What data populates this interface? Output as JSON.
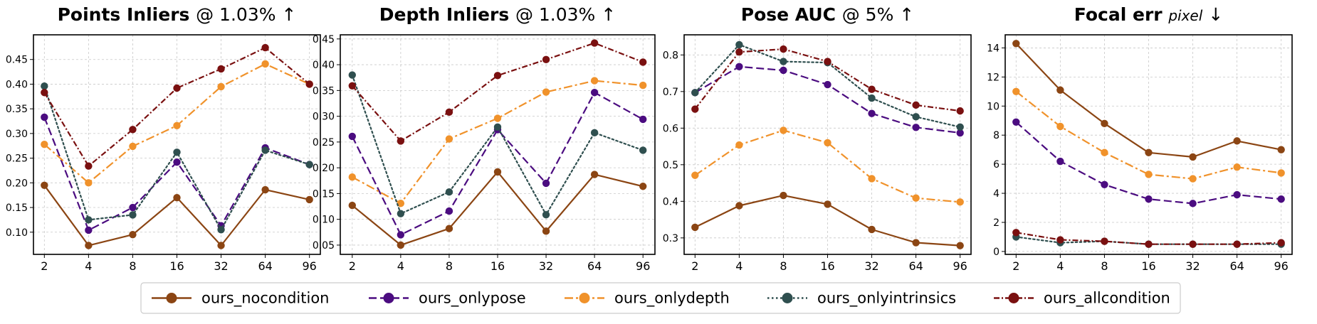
{
  "chart_data": [
    {
      "type": "line",
      "title": "Points Inliers",
      "title_suffix": "@ 1.03%",
      "arrow": "↑",
      "xlabel": "",
      "ylabel": "",
      "x_ticks": [
        "2",
        "4",
        "8",
        "16",
        "32",
        "64",
        "96"
      ],
      "ylim": [
        0.055,
        0.5
      ],
      "y_ticks": [
        0.1,
        0.15,
        0.2,
        0.25,
        0.3,
        0.35,
        0.4,
        0.45
      ],
      "y_decimals": 2,
      "series": [
        {
          "name": "ours_nocondition",
          "values": [
            0.195,
            0.073,
            0.095,
            0.17,
            0.073,
            0.186,
            0.166
          ]
        },
        {
          "name": "ours_onlypose",
          "values": [
            0.333,
            0.104,
            0.15,
            0.242,
            0.113,
            0.271,
            0.237
          ]
        },
        {
          "name": "ours_onlydepth",
          "values": [
            0.278,
            0.2,
            0.274,
            0.316,
            0.395,
            0.441,
            0.4
          ]
        },
        {
          "name": "ours_onlyintrinsics",
          "values": [
            0.396,
            0.125,
            0.135,
            0.262,
            0.105,
            0.266,
            0.237
          ]
        },
        {
          "name": "ours_allcondition",
          "values": [
            0.383,
            0.234,
            0.308,
            0.392,
            0.431,
            0.474,
            0.4
          ]
        }
      ]
    },
    {
      "type": "line",
      "title": "Depth Inliers",
      "title_suffix": "@ 1.03%",
      "arrow": "↑",
      "xlabel": "",
      "ylabel": "",
      "x_ticks": [
        "2",
        "4",
        "8",
        "16",
        "32",
        "64",
        "96"
      ],
      "ylim": [
        0.032,
        0.458
      ],
      "y_ticks": [
        0.05,
        0.1,
        0.15,
        0.2,
        0.25,
        0.3,
        0.35,
        0.4,
        0.45
      ],
      "y_decimals": 2,
      "series": [
        {
          "name": "ours_nocondition",
          "values": [
            0.127,
            0.05,
            0.082,
            0.192,
            0.077,
            0.187,
            0.164
          ]
        },
        {
          "name": "ours_onlypose",
          "values": [
            0.261,
            0.07,
            0.116,
            0.274,
            0.17,
            0.346,
            0.294
          ]
        },
        {
          "name": "ours_onlydepth",
          "values": [
            0.182,
            0.131,
            0.256,
            0.296,
            0.347,
            0.369,
            0.36
          ]
        },
        {
          "name": "ours_onlyintrinsics",
          "values": [
            0.38,
            0.111,
            0.153,
            0.279,
            0.109,
            0.268,
            0.234
          ]
        },
        {
          "name": "ours_allcondition",
          "values": [
            0.359,
            0.252,
            0.308,
            0.379,
            0.41,
            0.442,
            0.405
          ]
        }
      ]
    },
    {
      "type": "line",
      "title": "Pose AUC",
      "title_suffix": "@ 5%",
      "arrow": "↑",
      "xlabel": "",
      "ylabel": "",
      "x_ticks": [
        "2",
        "4",
        "8",
        "16",
        "32",
        "64",
        "96"
      ],
      "ylim": [
        0.255,
        0.855
      ],
      "y_ticks": [
        0.3,
        0.4,
        0.5,
        0.6,
        0.7,
        0.8
      ],
      "y_decimals": 1,
      "series": [
        {
          "name": "ours_nocondition",
          "values": [
            0.329,
            0.388,
            0.416,
            0.392,
            0.323,
            0.287,
            0.279
          ]
        },
        {
          "name": "ours_onlypose",
          "values": [
            0.697,
            0.768,
            0.758,
            0.719,
            0.64,
            0.602,
            0.587
          ]
        },
        {
          "name": "ours_onlydepth",
          "values": [
            0.471,
            0.554,
            0.594,
            0.56,
            0.462,
            0.409,
            0.398
          ]
        },
        {
          "name": "ours_onlyintrinsics",
          "values": [
            0.697,
            0.828,
            0.782,
            0.779,
            0.682,
            0.631,
            0.603
          ]
        },
        {
          "name": "ours_allcondition",
          "values": [
            0.652,
            0.808,
            0.816,
            0.782,
            0.706,
            0.663,
            0.647
          ]
        }
      ]
    },
    {
      "type": "line",
      "title": "Focal err",
      "title_suffix": "pixel",
      "arrow": "↓",
      "xlabel": "",
      "ylabel": "",
      "x_ticks": [
        "2",
        "4",
        "8",
        "16",
        "32",
        "64",
        "96"
      ],
      "ylim": [
        -0.2,
        14.9
      ],
      "y_ticks": [
        0,
        2,
        4,
        6,
        8,
        10,
        12,
        14
      ],
      "y_decimals": 0,
      "series": [
        {
          "name": "ours_nocondition",
          "values": [
            14.3,
            11.1,
            8.8,
            6.8,
            6.5,
            7.6,
            7.0
          ]
        },
        {
          "name": "ours_onlypose",
          "values": [
            8.9,
            6.2,
            4.6,
            3.6,
            3.3,
            3.9,
            3.6
          ]
        },
        {
          "name": "ours_onlydepth",
          "values": [
            11.0,
            8.6,
            6.8,
            5.3,
            5.0,
            5.8,
            5.4
          ]
        },
        {
          "name": "ours_onlyintrinsics",
          "values": [
            1.0,
            0.6,
            0.7,
            0.5,
            0.5,
            0.5,
            0.5
          ]
        },
        {
          "name": "ours_allcondition",
          "values": [
            1.3,
            0.8,
            0.7,
            0.5,
            0.5,
            0.5,
            0.6
          ]
        }
      ]
    }
  ],
  "legend": {
    "placement": "bottom-center",
    "entries": [
      {
        "name": "ours_nocondition",
        "color": "#8B4513",
        "dash": "solid"
      },
      {
        "name": "ours_onlypose",
        "color": "#4B0C80",
        "dash": "dashed"
      },
      {
        "name": "ours_onlydepth",
        "color": "#F0922B",
        "dash": "dashdot"
      },
      {
        "name": "ours_onlyintrinsics",
        "color": "#2F4F4F",
        "dash": "dotted"
      },
      {
        "name": "ours_allcondition",
        "color": "#7A1010",
        "dash": "dashdotlong"
      }
    ]
  }
}
